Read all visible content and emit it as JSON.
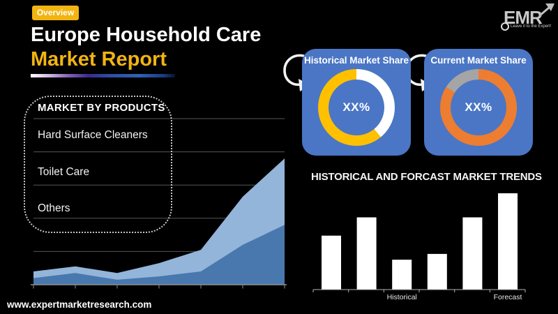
{
  "page": {
    "background": "#000000"
  },
  "header": {
    "badge": "Overview",
    "title_line1": "Europe Household Care",
    "title_line2": "Market Report",
    "accent_yellow": "#F2B411"
  },
  "logo": {
    "text": "EMR",
    "tagline": "Leave it to the Expert!"
  },
  "sidebar": {
    "heading": "MARKET BY PRODUCTS",
    "items": [
      {
        "label": "Hard Surface Cleaners"
      },
      {
        "label": "Toilet Care"
      },
      {
        "label": "Others"
      }
    ]
  },
  "footer": {
    "url": "www.expertmarketresearch.com"
  },
  "chart_data": [
    {
      "id": "historical-market-share",
      "type": "pie",
      "title": "Historical Market Share",
      "center_label": "XX%",
      "panel_color": "#4A76C5",
      "segments": [
        {
          "name": "unlabeled-white",
          "value": 39,
          "color": "#FFFFFF"
        },
        {
          "name": "unlabeled-yellow",
          "value": 61,
          "color": "#FFC000"
        }
      ]
    },
    {
      "id": "current-market-share",
      "type": "pie",
      "title": "Current Market Share",
      "center_label": "XX%",
      "panel_color": "#4A76C5",
      "segments": [
        {
          "name": "unlabeled-orange",
          "value": 84,
          "color": "#ED7D31"
        },
        {
          "name": "unlabeled-gray",
          "value": 16,
          "color": "#A5A5A5"
        }
      ]
    },
    {
      "id": "market-growth-area",
      "type": "area",
      "title": "",
      "xlabel": "",
      "ylabel": "",
      "x_tick_count": 7,
      "ylim": [
        0,
        100
      ],
      "grid": true,
      "series": [
        {
          "name": "total",
          "values": [
            8,
            11,
            7,
            13,
            21,
            53,
            76
          ],
          "color": "#93B5D9"
        },
        {
          "name": "lower",
          "values": [
            4,
            7,
            3,
            5,
            8,
            24,
            36
          ],
          "color": "#4878AD"
        }
      ]
    },
    {
      "id": "historical-forecast-trends",
      "type": "bar",
      "title": "HISTORICAL AND FORCAST MARKET TRENDS",
      "categories": [
        "",
        "",
        "Historical",
        "",
        "",
        "Forecast"
      ],
      "values": [
        56,
        75,
        31,
        37,
        75,
        100
      ],
      "bar_color": "#FFFFFF",
      "ylim": [
        0,
        100
      ],
      "grid": false
    }
  ]
}
